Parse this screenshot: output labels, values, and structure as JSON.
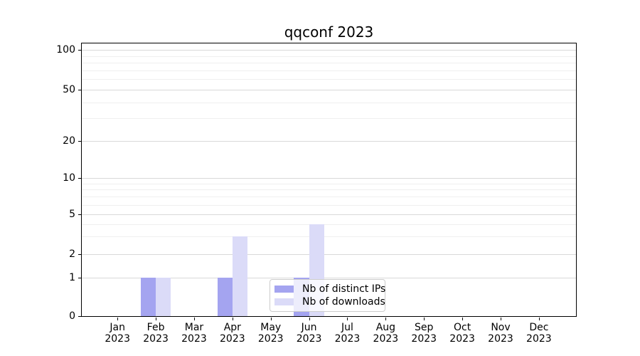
{
  "colors": {
    "bar_distinct_ips": "#a4a4f0",
    "bar_downloads": "#dbdbf8",
    "major_gridline": "#d9d9d9",
    "minor_gridline": "#efefef",
    "axis": "#000000",
    "legend_border": "#cccccc",
    "background": "#ffffff"
  },
  "chart_data": {
    "type": "bar",
    "title": "qqconf 2023",
    "categories": [
      "Jan 2023",
      "Feb 2023",
      "Mar 2023",
      "Apr 2023",
      "May 2023",
      "Jun 2023",
      "Jul 2023",
      "Aug 2023",
      "Sep 2023",
      "Oct 2023",
      "Nov 2023",
      "Dec 2023"
    ],
    "x_tick_labels": [
      [
        "Jan",
        "2023"
      ],
      [
        "Feb",
        "2023"
      ],
      [
        "Mar",
        "2023"
      ],
      [
        "Apr",
        "2023"
      ],
      [
        "May",
        "2023"
      ],
      [
        "Jun",
        "2023"
      ],
      [
        "Jul",
        "2023"
      ],
      [
        "Aug",
        "2023"
      ],
      [
        "Sep",
        "2023"
      ],
      [
        "Oct",
        "2023"
      ],
      [
        "Nov",
        "2023"
      ],
      [
        "Dec",
        "2023"
      ]
    ],
    "series": [
      {
        "name": "Nb of distinct IPs",
        "color": "#a4a4f0",
        "values": [
          0,
          1,
          0,
          1,
          0,
          1,
          0,
          0,
          0,
          0,
          0,
          0
        ]
      },
      {
        "name": "Nb of downloads",
        "color": "#dbdbf8",
        "values": [
          0,
          1,
          0,
          3,
          0,
          4,
          0,
          0,
          0,
          0,
          0,
          0
        ]
      }
    ],
    "xlabel": "",
    "ylabel": "",
    "yscale": "log-like",
    "y_ticks": [
      0,
      1,
      2,
      5,
      10,
      20,
      50,
      100
    ],
    "y_minor_gridlines": [
      3,
      4,
      6,
      7,
      8,
      9,
      30,
      40,
      60,
      70,
      80,
      90
    ],
    "ylim": [
      0,
      110
    ],
    "grid": true,
    "legend": {
      "position": "lower center",
      "entries": [
        "Nb of distinct IPs",
        "Nb of downloads"
      ]
    }
  }
}
